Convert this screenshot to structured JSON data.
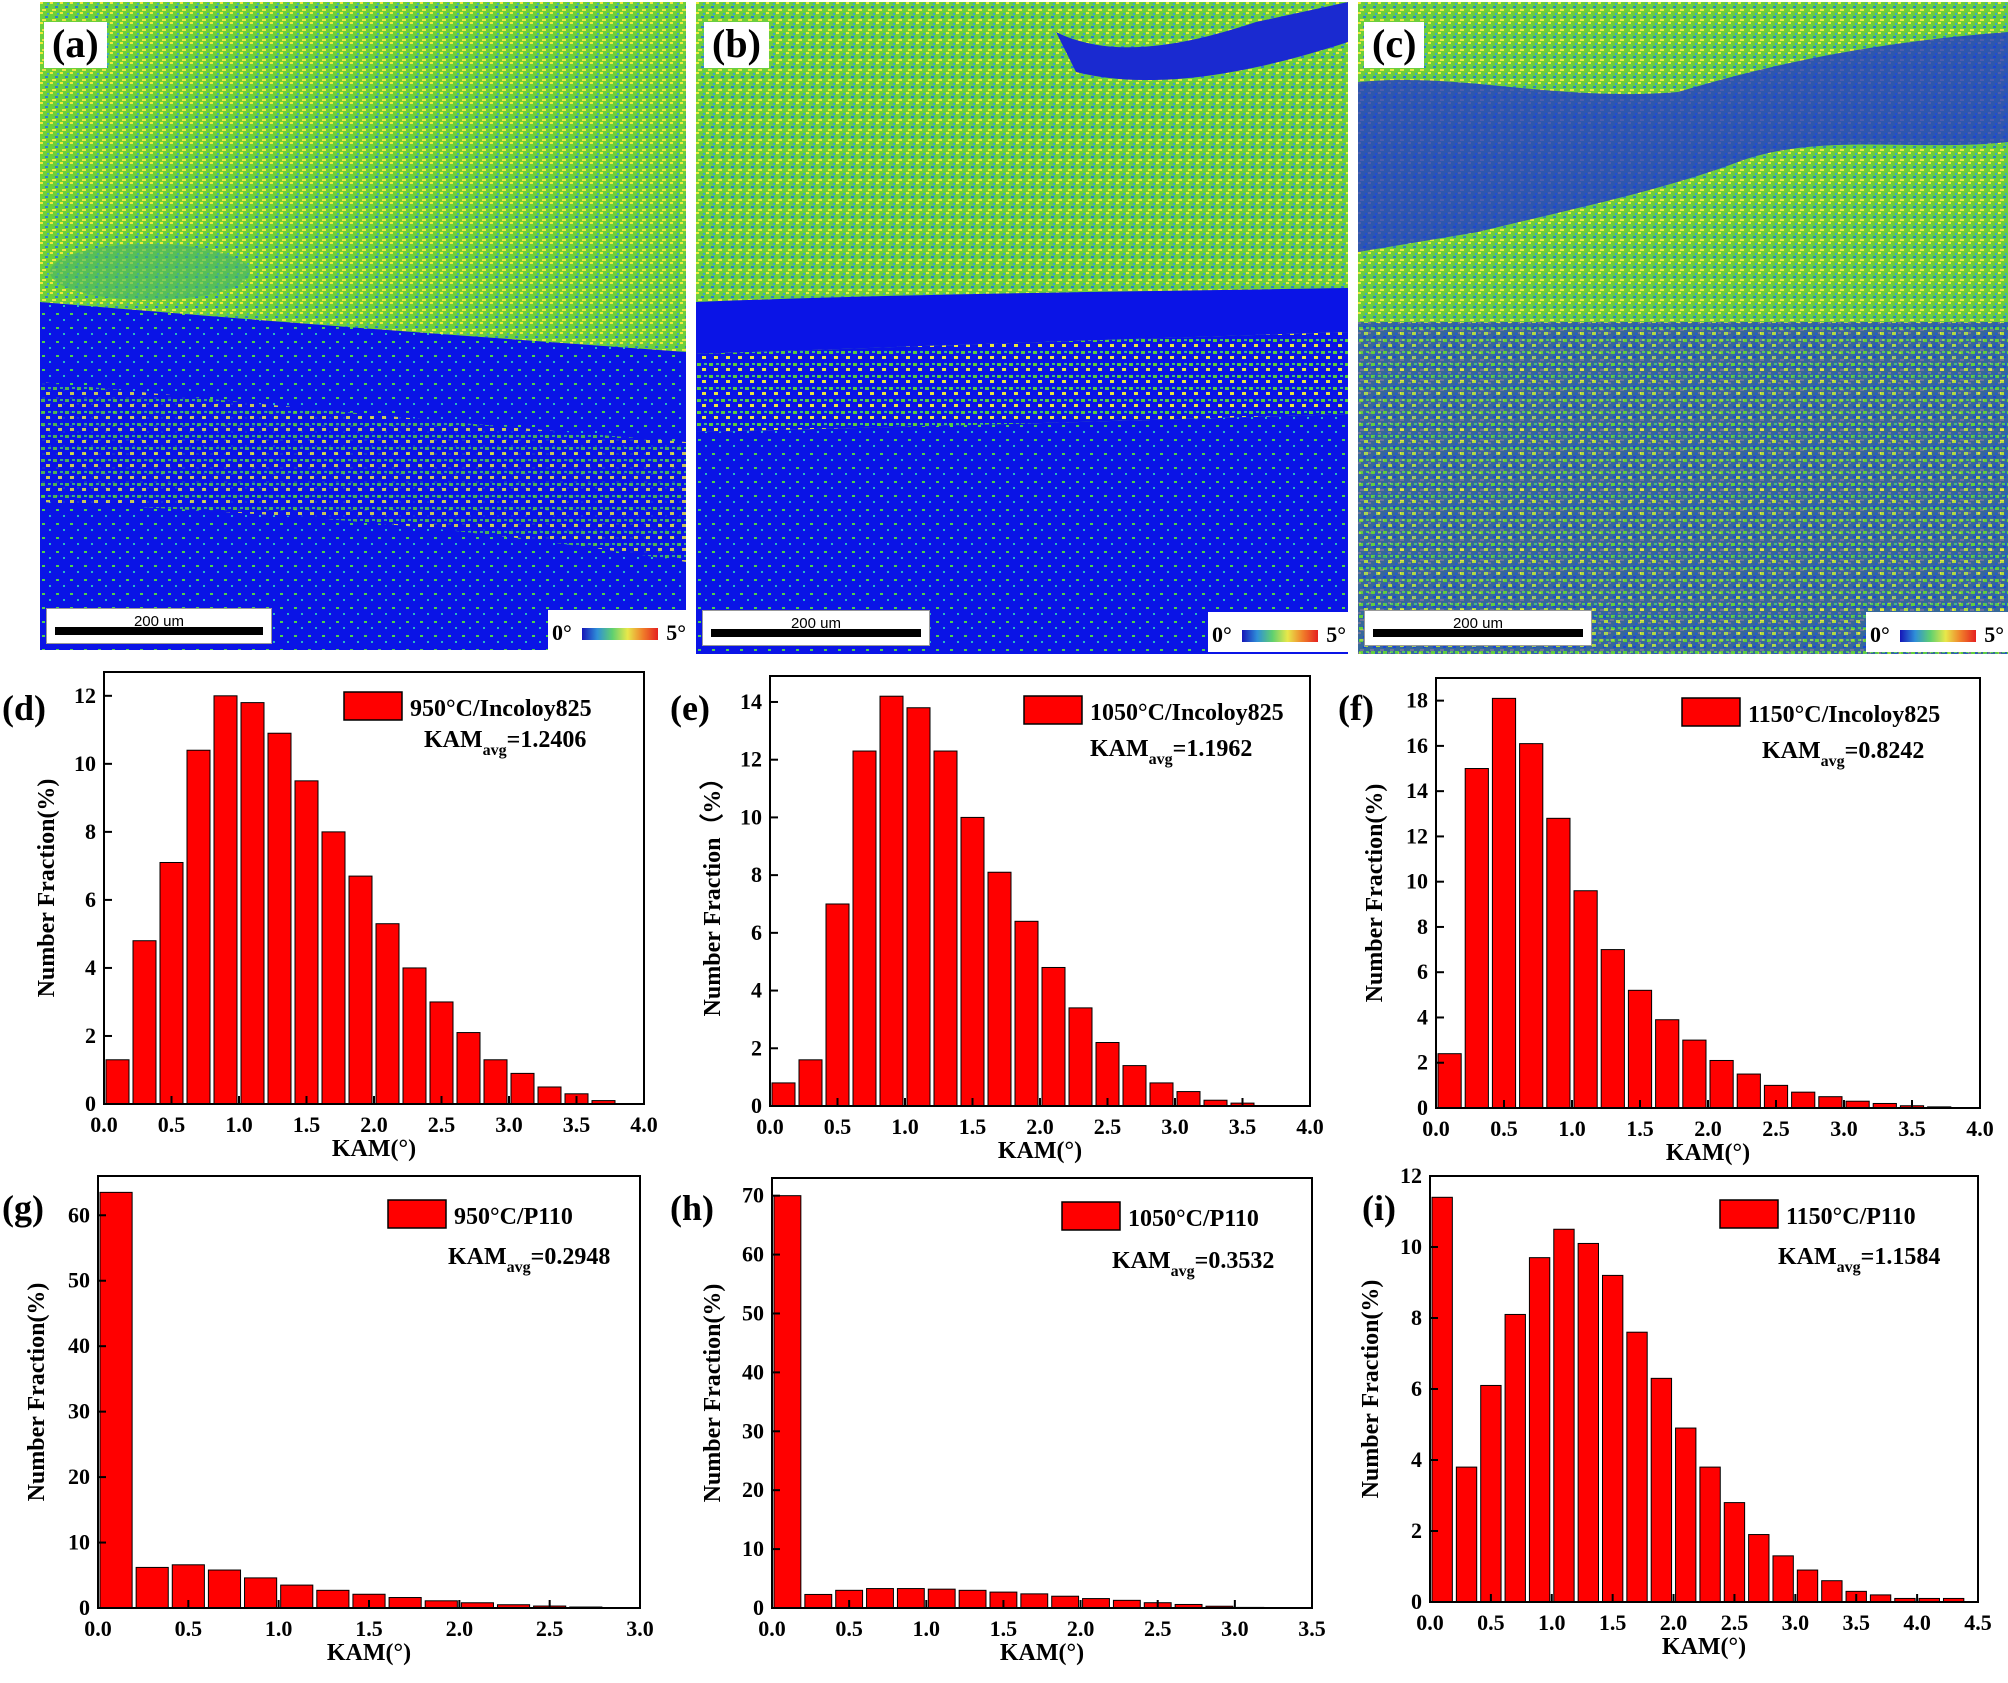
{
  "maps": [
    {
      "panel": "(a)",
      "scale_label": "200 um",
      "legend_low": "0°",
      "legend_high": "5°"
    },
    {
      "panel": "(b)",
      "scale_label": "200 um",
      "legend_low": "0°",
      "legend_high": "5°"
    },
    {
      "panel": "(c)",
      "scale_label": "200 um",
      "legend_low": "0°",
      "legend_high": "5°"
    }
  ],
  "colors": {
    "bar": "#ff0000",
    "map_low": "#0a14e6",
    "map_mid": "#58cc3a",
    "map_high": "#f2ee3a"
  },
  "chart_data": [
    {
      "type": "bar",
      "panel": "(d)",
      "legend": "950°C/Incoloy825",
      "kam_avg": "=1.2406",
      "xlabel": "KAM(°)",
      "ylabel": "Number Fraction(%)",
      "xlim": [
        0,
        4.0
      ],
      "ylim": [
        0,
        12.7
      ],
      "xticks": [
        0.0,
        0.5,
        1.0,
        1.5,
        2.0,
        2.5,
        3.0,
        3.5,
        4.0
      ],
      "xtick_labels": [
        "0.0",
        "0.5",
        "1.0",
        "1.5",
        "2.0",
        "2.5",
        "3.0",
        "3.5",
        "4.0"
      ],
      "yticks": [
        0,
        2,
        4,
        6,
        8,
        10,
        12
      ],
      "ytick_labels": [
        "0",
        "2",
        "4",
        "6",
        "8",
        "10",
        "12"
      ],
      "bin_width": 0.2,
      "x": [
        0.0,
        0.2,
        0.4,
        0.6,
        0.8,
        1.0,
        1.2,
        1.4,
        1.6,
        1.8,
        2.0,
        2.2,
        2.4,
        2.6,
        2.8,
        3.0,
        3.2,
        3.4,
        3.6,
        3.8
      ],
      "values": [
        1.3,
        4.8,
        7.1,
        10.4,
        12.0,
        11.8,
        10.9,
        9.5,
        8.0,
        6.7,
        5.3,
        4.0,
        3.0,
        2.1,
        1.3,
        0.9,
        0.5,
        0.3,
        0.1,
        0.0
      ]
    },
    {
      "type": "bar",
      "panel": "(e)",
      "legend": "1050°C/Incoloy825",
      "kam_avg": "=1.1962",
      "xlabel": "KAM(°)",
      "ylabel": "Number Fraction（%）",
      "xlim": [
        0,
        4.0
      ],
      "ylim": [
        0,
        14.9
      ],
      "xticks": [
        0.0,
        0.5,
        1.0,
        1.5,
        2.0,
        2.5,
        3.0,
        3.5,
        4.0
      ],
      "xtick_labels": [
        "0.0",
        "0.5",
        "1.0",
        "1.5",
        "2.0",
        "2.5",
        "3.0",
        "3.5",
        "4.0"
      ],
      "yticks": [
        0,
        2,
        4,
        6,
        8,
        10,
        12,
        14
      ],
      "ytick_labels": [
        "0",
        "2",
        "4",
        "6",
        "8",
        "10",
        "12",
        "14"
      ],
      "bin_width": 0.2,
      "x": [
        0.0,
        0.2,
        0.4,
        0.6,
        0.8,
        1.0,
        1.2,
        1.4,
        1.6,
        1.8,
        2.0,
        2.2,
        2.4,
        2.6,
        2.8,
        3.0,
        3.2,
        3.4,
        3.6,
        3.8
      ],
      "values": [
        0.8,
        1.6,
        7.0,
        12.3,
        14.2,
        13.8,
        12.3,
        10.0,
        8.1,
        6.4,
        4.8,
        3.4,
        2.2,
        1.4,
        0.8,
        0.5,
        0.2,
        0.1,
        0.0,
        0.0
      ]
    },
    {
      "type": "bar",
      "panel": "(f)",
      "legend": "1150°C/Incoloy825",
      "kam_avg": "=0.8242",
      "xlabel": "KAM(°)",
      "ylabel": "Number Fraction(%)",
      "xlim": [
        0,
        4.0
      ],
      "ylim": [
        0,
        19.0
      ],
      "xticks": [
        0.0,
        0.5,
        1.0,
        1.5,
        2.0,
        2.5,
        3.0,
        3.5,
        4.0
      ],
      "xtick_labels": [
        "0.0",
        "0.5",
        "1.0",
        "1.5",
        "2.0",
        "2.5",
        "3.0",
        "3.5",
        "4.0"
      ],
      "yticks": [
        0,
        2,
        4,
        6,
        8,
        10,
        12,
        14,
        16,
        18
      ],
      "ytick_labels": [
        "0",
        "2",
        "4",
        "6",
        "8",
        "10",
        "12",
        "14",
        "16",
        "18"
      ],
      "bin_width": 0.2,
      "x": [
        0.0,
        0.2,
        0.4,
        0.6,
        0.8,
        1.0,
        1.2,
        1.4,
        1.6,
        1.8,
        2.0,
        2.2,
        2.4,
        2.6,
        2.8,
        3.0,
        3.2,
        3.4,
        3.6,
        3.8
      ],
      "values": [
        2.4,
        15.0,
        18.1,
        16.1,
        12.8,
        9.6,
        7.0,
        5.2,
        3.9,
        3.0,
        2.1,
        1.5,
        1.0,
        0.7,
        0.5,
        0.3,
        0.2,
        0.1,
        0.05,
        0.0
      ]
    },
    {
      "type": "bar",
      "panel": "(g)",
      "legend": "950°C/P110",
      "kam_avg": "=0.2948",
      "xlabel": "KAM(°)",
      "ylabel": "Number Fraction(%)",
      "xlim": [
        0,
        3.0
      ],
      "ylim": [
        0,
        66
      ],
      "xticks": [
        0.0,
        0.5,
        1.0,
        1.5,
        2.0,
        2.5,
        3.0
      ],
      "xtick_labels": [
        "0.0",
        "0.5",
        "1.0",
        "1.5",
        "2.0",
        "2.5",
        "3.0"
      ],
      "yticks": [
        0,
        10,
        20,
        30,
        40,
        50,
        60
      ],
      "ytick_labels": [
        "0",
        "10",
        "20",
        "30",
        "40",
        "50",
        "60"
      ],
      "bin_width": 0.2,
      "x": [
        0.0,
        0.2,
        0.4,
        0.6,
        0.8,
        1.0,
        1.2,
        1.4,
        1.6,
        1.8,
        2.0,
        2.2,
        2.4,
        2.6,
        2.8
      ],
      "values": [
        63.5,
        6.2,
        6.6,
        5.8,
        4.6,
        3.5,
        2.7,
        2.1,
        1.6,
        1.1,
        0.8,
        0.5,
        0.3,
        0.15,
        0.05
      ]
    },
    {
      "type": "bar",
      "panel": "(h)",
      "legend": "1050°C/P110",
      "kam_avg": "=0.3532",
      "xlabel": "KAM(°)",
      "ylabel": "Number Fraction(%)",
      "xlim": [
        0,
        3.5
      ],
      "ylim": [
        0,
        73
      ],
      "xticks": [
        0.0,
        0.5,
        1.0,
        1.5,
        2.0,
        2.5,
        3.0,
        3.5
      ],
      "xtick_labels": [
        "0.0",
        "0.5",
        "1.0",
        "1.5",
        "2.0",
        "2.5",
        "3.0",
        "3.5"
      ],
      "yticks": [
        0,
        10,
        20,
        30,
        40,
        50,
        60,
        70
      ],
      "ytick_labels": [
        "0",
        "10",
        "20",
        "30",
        "40",
        "50",
        "60",
        "70"
      ],
      "bin_width": 0.2,
      "x": [
        0.0,
        0.2,
        0.4,
        0.6,
        0.8,
        1.0,
        1.2,
        1.4,
        1.6,
        1.8,
        2.0,
        2.2,
        2.4,
        2.6,
        2.8,
        3.0,
        3.2
      ],
      "values": [
        70.0,
        2.3,
        3.0,
        3.3,
        3.3,
        3.2,
        3.0,
        2.7,
        2.4,
        2.0,
        1.6,
        1.3,
        0.9,
        0.6,
        0.3,
        0.1,
        0.05
      ]
    },
    {
      "type": "bar",
      "panel": "(i)",
      "legend": "1150°C/P110",
      "kam_avg": "=1.1584",
      "xlabel": "KAM(°)",
      "ylabel": "Number Fraction(%)",
      "xlim": [
        0,
        4.5
      ],
      "ylim": [
        0,
        12.0
      ],
      "xticks": [
        0.0,
        0.5,
        1.0,
        1.5,
        2.0,
        2.5,
        3.0,
        3.5,
        4.0,
        4.5
      ],
      "xtick_labels": [
        "0.0",
        "0.5",
        "1.0",
        "1.5",
        "2.0",
        "2.5",
        "3.0",
        "3.5",
        "4.0",
        "4.5"
      ],
      "yticks": [
        0,
        2,
        4,
        6,
        8,
        10,
        12
      ],
      "ytick_labels": [
        "0",
        "2",
        "4",
        "6",
        "8",
        "10",
        "12"
      ],
      "bin_width": 0.2,
      "x": [
        0.0,
        0.2,
        0.4,
        0.6,
        0.8,
        1.0,
        1.2,
        1.4,
        1.6,
        1.8,
        2.0,
        2.2,
        2.4,
        2.6,
        2.8,
        3.0,
        3.2,
        3.4,
        3.6,
        3.8,
        4.0,
        4.2
      ],
      "values": [
        11.4,
        3.8,
        6.1,
        8.1,
        9.7,
        10.5,
        10.1,
        9.2,
        7.6,
        6.3,
        4.9,
        3.8,
        2.8,
        1.9,
        1.3,
        0.9,
        0.6,
        0.3,
        0.2,
        0.1,
        0.1,
        0.1
      ]
    }
  ]
}
